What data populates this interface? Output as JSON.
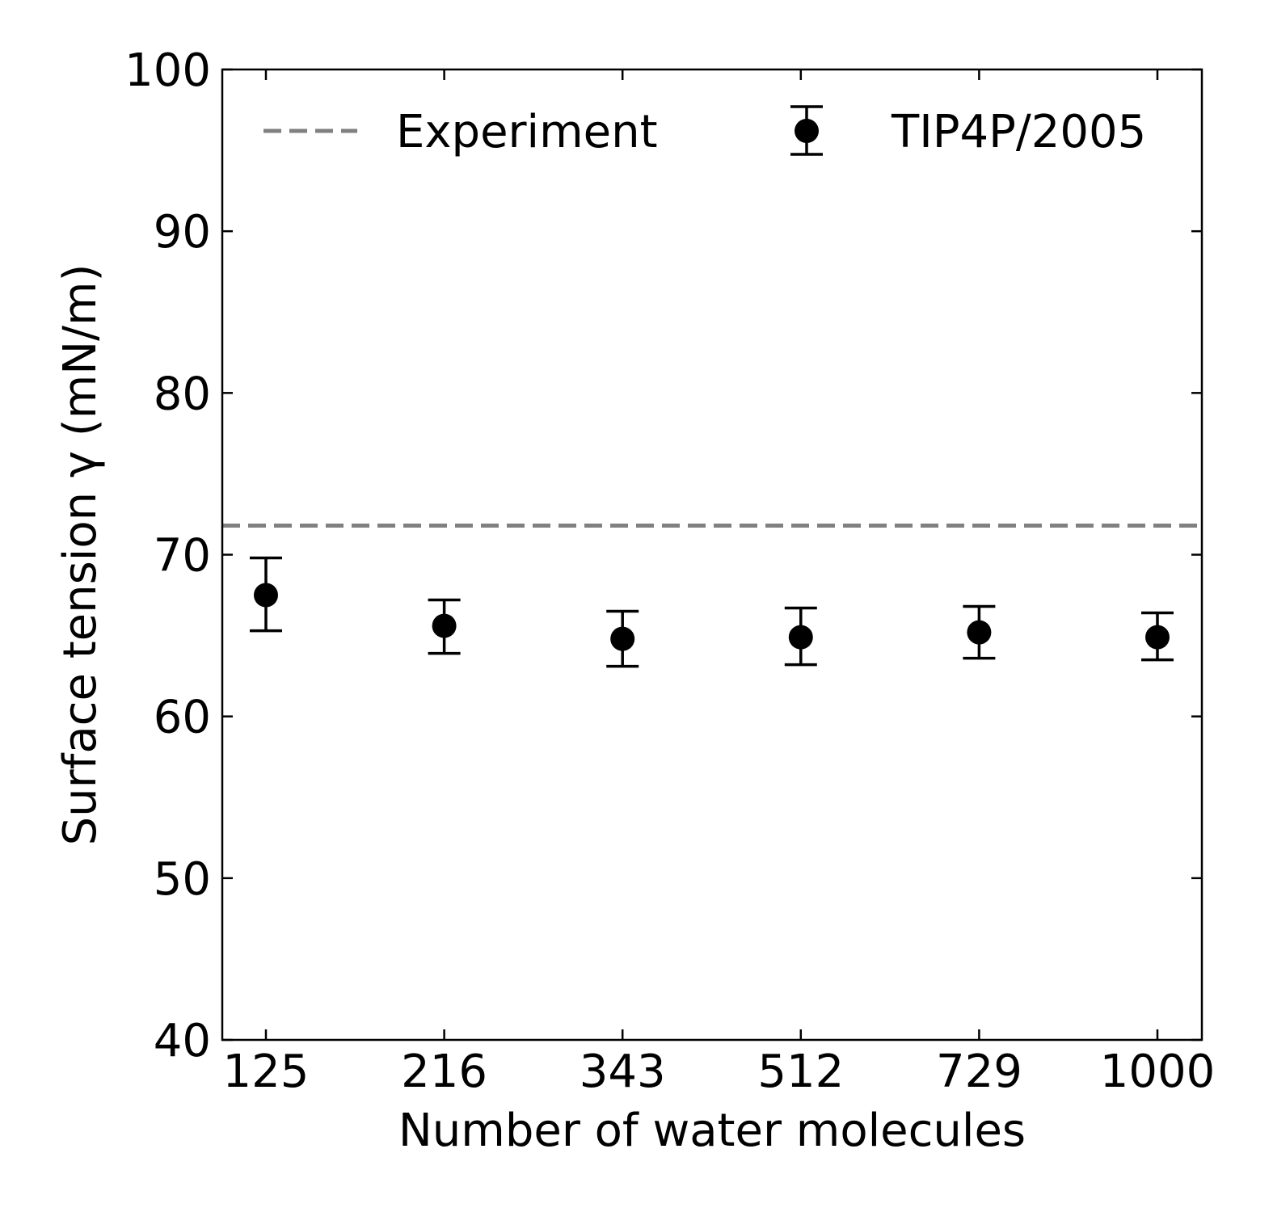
{
  "chart_data": {
    "type": "scatter",
    "categories": [
      "125",
      "216",
      "343",
      "512",
      "729",
      "1000"
    ],
    "xlabel": "Number of water molecules",
    "ylabel": "Surface tension γ (mN/m)",
    "ylim": [
      40,
      100
    ],
    "yticks": [
      40,
      50,
      60,
      70,
      80,
      90,
      100
    ],
    "grid": false,
    "legend_position": "top",
    "series": [
      {
        "name": "TIP4P/2005",
        "kind": "errorbar",
        "color": "#000000",
        "values": [
          67.5,
          65.6,
          64.8,
          64.9,
          65.2,
          64.9
        ],
        "err_low": [
          2.2,
          1.7,
          1.7,
          1.7,
          1.6,
          1.4
        ],
        "err_high": [
          2.3,
          1.6,
          1.7,
          1.8,
          1.6,
          1.5
        ]
      }
    ],
    "reference_lines": [
      {
        "name": "Experiment",
        "y": 71.8,
        "style": "dashed",
        "color": "#808080"
      }
    ]
  }
}
